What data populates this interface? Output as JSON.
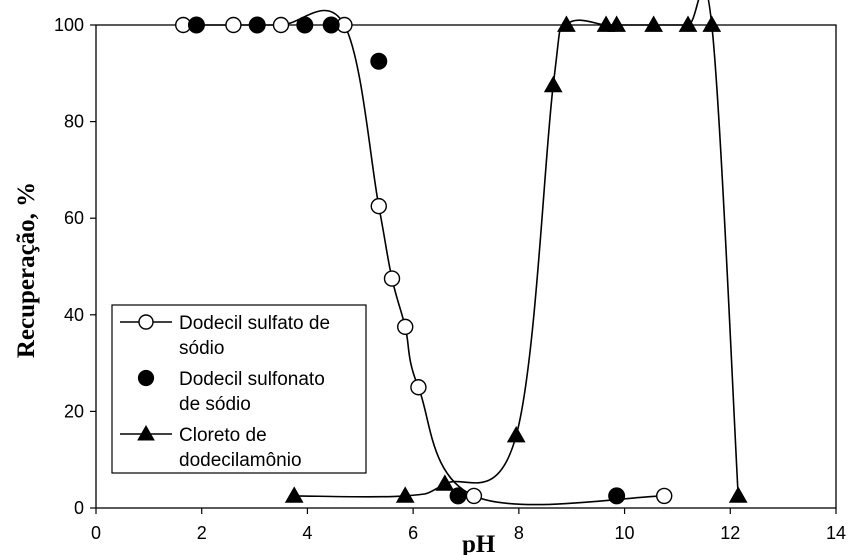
{
  "chart_data": {
    "type": "line",
    "xlabel": "pH",
    "ylabel": "Recuperação, %",
    "xlim": [
      0,
      14
    ],
    "ylim": [
      0,
      100
    ],
    "x_ticks": [
      "0",
      "2",
      "4",
      "6",
      "8",
      "10",
      "12",
      "14"
    ],
    "y_ticks": [
      "0",
      "20",
      "40",
      "60",
      "80",
      "100"
    ],
    "grid": false,
    "legend_position": "lower-left",
    "series": [
      {
        "name": "Dodecil sulfato de sódio",
        "marker": "open-circle",
        "line": true,
        "points": [
          [
            1.65,
            100
          ],
          [
            2.6,
            100
          ],
          [
            3.5,
            100
          ],
          [
            4.7,
            100
          ],
          [
            5.35,
            62.5
          ],
          [
            5.6,
            47.5
          ],
          [
            5.85,
            37.5
          ],
          [
            6.1,
            25
          ],
          [
            7.15,
            2.5
          ],
          [
            10.75,
            2.5
          ]
        ]
      },
      {
        "name": "Dodecil sulfonato de sódio",
        "marker": "filled-circle",
        "line": false,
        "points": [
          [
            1.9,
            100
          ],
          [
            3.05,
            100
          ],
          [
            3.95,
            100
          ],
          [
            4.45,
            100
          ],
          [
            5.35,
            92.5
          ],
          [
            6.85,
            2.5
          ],
          [
            9.85,
            2.5
          ]
        ]
      },
      {
        "name": "Cloreto de dodecilamônio",
        "marker": "filled-triangle",
        "line": true,
        "points": [
          [
            3.75,
            2.5
          ],
          [
            5.85,
            2.5
          ],
          [
            6.6,
            5
          ],
          [
            7.95,
            15
          ],
          [
            8.65,
            87.5
          ],
          [
            8.9,
            100
          ],
          [
            9.65,
            100
          ],
          [
            9.85,
            100
          ],
          [
            10.55,
            100
          ],
          [
            11.2,
            100
          ],
          [
            11.65,
            100
          ],
          [
            12.15,
            2.5
          ]
        ]
      }
    ]
  }
}
